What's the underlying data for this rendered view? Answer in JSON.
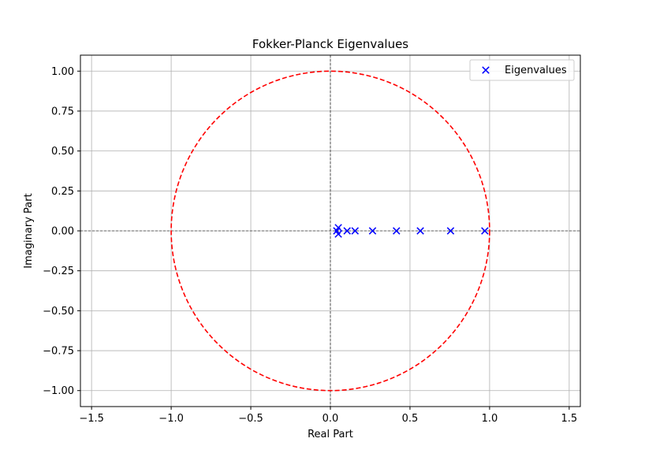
{
  "chart_data": {
    "type": "scatter",
    "title": "Fokker-Planck Eigenvalues",
    "xlabel": "Real Part",
    "ylabel": "Imaginary Part",
    "xlim": [
      -1.57,
      1.57
    ],
    "ylim": [
      -1.1,
      1.1
    ],
    "x_ticks": [
      -1.5,
      -1.0,
      -0.5,
      0.0,
      0.5,
      1.0,
      1.5
    ],
    "x_tick_labels": [
      "−1.5",
      "−1.0",
      "−0.5",
      "0.0",
      "0.5",
      "1.0",
      "1.5"
    ],
    "y_ticks": [
      1.0,
      0.75,
      0.5,
      0.25,
      0.0,
      -0.25,
      -0.5,
      -0.75,
      -1.0
    ],
    "y_tick_labels": [
      "1.00",
      "0.75",
      "0.50",
      "0.25",
      "0.00",
      "−0.25",
      "−0.50",
      "−0.75",
      "−1.00"
    ],
    "grid": true,
    "legend_position": "top-right",
    "series": [
      {
        "name": "Eigenvalues",
        "marker": "x",
        "color": "#0000ff",
        "points": [
          {
            "x": 0.97,
            "y": 0.0
          },
          {
            "x": 0.755,
            "y": 0.0
          },
          {
            "x": 0.565,
            "y": 0.0
          },
          {
            "x": 0.415,
            "y": 0.0
          },
          {
            "x": 0.265,
            "y": 0.0
          },
          {
            "x": 0.155,
            "y": 0.0
          },
          {
            "x": 0.105,
            "y": 0.0
          },
          {
            "x": 0.05,
            "y": 0.02
          },
          {
            "x": 0.05,
            "y": -0.02
          },
          {
            "x": 0.04,
            "y": 0.0
          }
        ]
      }
    ],
    "reference_circle": {
      "center": [
        0,
        0
      ],
      "radius": 1.0,
      "color": "#ff0000",
      "style": "dashed"
    },
    "reference_lines": {
      "color": "#000000",
      "style": "dashed",
      "x": 0.0,
      "y": 0.0
    }
  }
}
